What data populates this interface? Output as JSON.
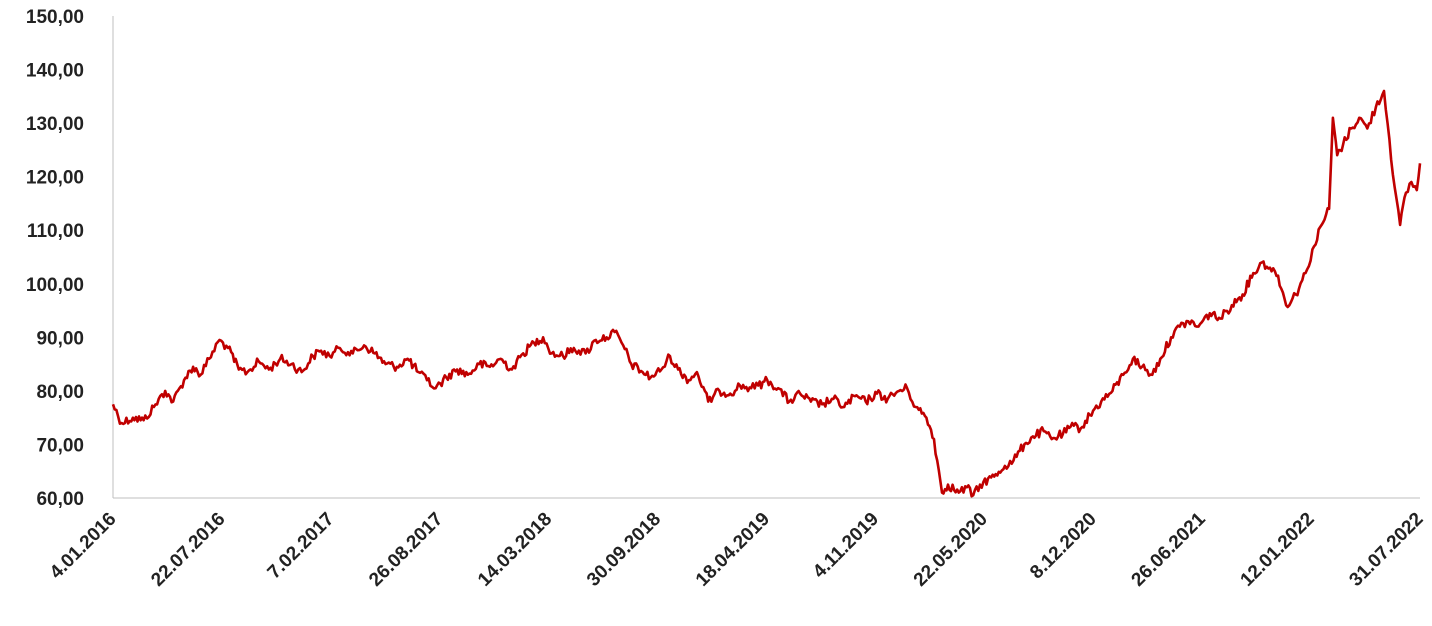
{
  "chart_data": {
    "type": "line",
    "title": "",
    "xlabel": "",
    "ylabel": "",
    "ylim": [
      60,
      150
    ],
    "grid": false,
    "legend": "none",
    "colors": {
      "line": "#c00000",
      "axis": "#bfbfbf"
    },
    "y_tick_labels": [
      "60,00",
      "70,00",
      "80,00",
      "90,00",
      "100,00",
      "110,00",
      "120,00",
      "130,00",
      "140,00",
      "150,00"
    ],
    "x_tick_labels": [
      "4.01.2016",
      "22.07.2016",
      "7.02.2017",
      "26.08.2017",
      "14.03.2018",
      "30.09.2018",
      "18.04.2019",
      "4.11.2019",
      "22.05.2020",
      "8.12.2020",
      "26.06.2021",
      "12.01.2022",
      "31.07.2022"
    ],
    "x_range": [
      "2016-01-04",
      "2022-08-31"
    ],
    "series": [
      {
        "points": [
          [
            "2016-01-04",
            77.5
          ],
          [
            "2016-01-20",
            74.0
          ],
          [
            "2016-02-10",
            75.0
          ],
          [
            "2016-03-01",
            74.5
          ],
          [
            "2016-03-20",
            77.0
          ],
          [
            "2016-04-10",
            80.0
          ],
          [
            "2016-04-25",
            78.0
          ],
          [
            "2016-05-15",
            82.0
          ],
          [
            "2016-06-01",
            84.5
          ],
          [
            "2016-06-15",
            83.0
          ],
          [
            "2016-07-01",
            86.0
          ],
          [
            "2016-07-20",
            89.5
          ],
          [
            "2016-08-05",
            88.0
          ],
          [
            "2016-08-25",
            84.0
          ],
          [
            "2016-09-10",
            83.5
          ],
          [
            "2016-10-01",
            85.5
          ],
          [
            "2016-10-20",
            84.0
          ],
          [
            "2016-11-10",
            86.0
          ],
          [
            "2016-12-01",
            85.0
          ],
          [
            "2016-12-20",
            83.5
          ],
          [
            "2017-01-10",
            86.5
          ],
          [
            "2017-01-25",
            87.5
          ],
          [
            "2017-02-10",
            86.5
          ],
          [
            "2017-03-01",
            88.0
          ],
          [
            "2017-03-25",
            87.0
          ],
          [
            "2017-04-15",
            88.5
          ],
          [
            "2017-05-05",
            87.0
          ],
          [
            "2017-05-25",
            85.0
          ],
          [
            "2017-06-15",
            84.5
          ],
          [
            "2017-07-05",
            86.0
          ],
          [
            "2017-07-25",
            83.5
          ],
          [
            "2017-08-10",
            82.0
          ],
          [
            "2017-08-26",
            80.5
          ],
          [
            "2017-09-15",
            82.5
          ],
          [
            "2017-10-05",
            84.0
          ],
          [
            "2017-10-25",
            83.0
          ],
          [
            "2017-11-15",
            85.0
          ],
          [
            "2017-12-05",
            84.5
          ],
          [
            "2017-12-25",
            86.0
          ],
          [
            "2018-01-15",
            84.0
          ],
          [
            "2018-02-05",
            87.0
          ],
          [
            "2018-02-25",
            89.0
          ],
          [
            "2018-03-14",
            90.0
          ],
          [
            "2018-03-30",
            87.0
          ],
          [
            "2018-04-20",
            86.5
          ],
          [
            "2018-05-10",
            88.0
          ],
          [
            "2018-06-01",
            87.0
          ],
          [
            "2018-06-20",
            89.5
          ],
          [
            "2018-07-10",
            90.0
          ],
          [
            "2018-07-25",
            91.0
          ],
          [
            "2018-08-10",
            88.5
          ],
          [
            "2018-08-25",
            85.0
          ],
          [
            "2018-09-15",
            83.5
          ],
          [
            "2018-09-30",
            82.5
          ],
          [
            "2018-10-20",
            84.0
          ],
          [
            "2018-11-05",
            86.5
          ],
          [
            "2018-11-20",
            84.0
          ],
          [
            "2018-12-10",
            82.0
          ],
          [
            "2018-12-25",
            83.5
          ],
          [
            "2019-01-15",
            78.0
          ],
          [
            "2019-02-05",
            80.0
          ],
          [
            "2019-02-25",
            79.5
          ],
          [
            "2019-03-15",
            81.0
          ],
          [
            "2019-04-05",
            80.5
          ],
          [
            "2019-04-18",
            81.0
          ],
          [
            "2019-05-05",
            82.0
          ],
          [
            "2019-05-25",
            80.5
          ],
          [
            "2019-06-15",
            78.0
          ],
          [
            "2019-07-05",
            79.5
          ],
          [
            "2019-07-25",
            78.0
          ],
          [
            "2019-08-15",
            77.5
          ],
          [
            "2019-09-05",
            78.5
          ],
          [
            "2019-09-25",
            77.0
          ],
          [
            "2019-10-15",
            79.0
          ],
          [
            "2019-11-04",
            78.0
          ],
          [
            "2019-11-25",
            79.5
          ],
          [
            "2019-12-15",
            78.5
          ],
          [
            "2020-01-05",
            80.0
          ],
          [
            "2020-01-20",
            80.5
          ],
          [
            "2020-02-05",
            77.0
          ],
          [
            "2020-02-25",
            75.0
          ],
          [
            "2020-03-10",
            71.0
          ],
          [
            "2020-03-25",
            61.0
          ],
          [
            "2020-04-05",
            62.5
          ],
          [
            "2020-04-25",
            61.0
          ],
          [
            "2020-05-10",
            62.0
          ],
          [
            "2020-05-22",
            60.5
          ],
          [
            "2020-06-10",
            63.0
          ],
          [
            "2020-06-30",
            64.0
          ],
          [
            "2020-07-20",
            66.0
          ],
          [
            "2020-08-05",
            67.0
          ],
          [
            "2020-08-25",
            70.0
          ],
          [
            "2020-09-10",
            71.5
          ],
          [
            "2020-09-30",
            72.5
          ],
          [
            "2020-10-15",
            71.0
          ],
          [
            "2020-11-05",
            72.0
          ],
          [
            "2020-11-25",
            73.5
          ],
          [
            "2020-12-08",
            73.0
          ],
          [
            "2020-12-25",
            75.5
          ],
          [
            "2021-01-15",
            78.0
          ],
          [
            "2021-02-05",
            80.0
          ],
          [
            "2021-02-25",
            83.0
          ],
          [
            "2021-03-15",
            86.0
          ],
          [
            "2021-04-01",
            84.5
          ],
          [
            "2021-04-20",
            83.0
          ],
          [
            "2021-05-05",
            86.0
          ],
          [
            "2021-05-25",
            90.0
          ],
          [
            "2021-06-10",
            92.0
          ],
          [
            "2021-06-26",
            93.0
          ],
          [
            "2021-07-15",
            92.0
          ],
          [
            "2021-08-05",
            94.5
          ],
          [
            "2021-08-25",
            93.5
          ],
          [
            "2021-09-15",
            96.0
          ],
          [
            "2021-10-05",
            98.0
          ],
          [
            "2021-10-25",
            102.0
          ],
          [
            "2021-11-10",
            104.0
          ],
          [
            "2021-11-25",
            103.0
          ],
          [
            "2021-12-10",
            101.5
          ],
          [
            "2021-12-25",
            96.0
          ],
          [
            "2022-01-12",
            98.0
          ],
          [
            "2022-01-30",
            102.0
          ],
          [
            "2022-02-15",
            107.0
          ],
          [
            "2022-03-01",
            111.0
          ],
          [
            "2022-03-15",
            114.0
          ],
          [
            "2022-03-22",
            131.0
          ],
          [
            "2022-03-30",
            124.0
          ],
          [
            "2022-04-10",
            126.0
          ],
          [
            "2022-04-25",
            129.0
          ],
          [
            "2022-05-10",
            131.0
          ],
          [
            "2022-05-25",
            129.0
          ],
          [
            "2022-06-10",
            133.0
          ],
          [
            "2022-06-25",
            136.0
          ],
          [
            "2022-07-05",
            127.0
          ],
          [
            "2022-07-15",
            118.0
          ],
          [
            "2022-07-25",
            111.0
          ],
          [
            "2022-08-05",
            117.0
          ],
          [
            "2022-08-15",
            119.0
          ],
          [
            "2022-08-25",
            117.5
          ],
          [
            "2022-08-31",
            122.5
          ]
        ]
      }
    ]
  }
}
